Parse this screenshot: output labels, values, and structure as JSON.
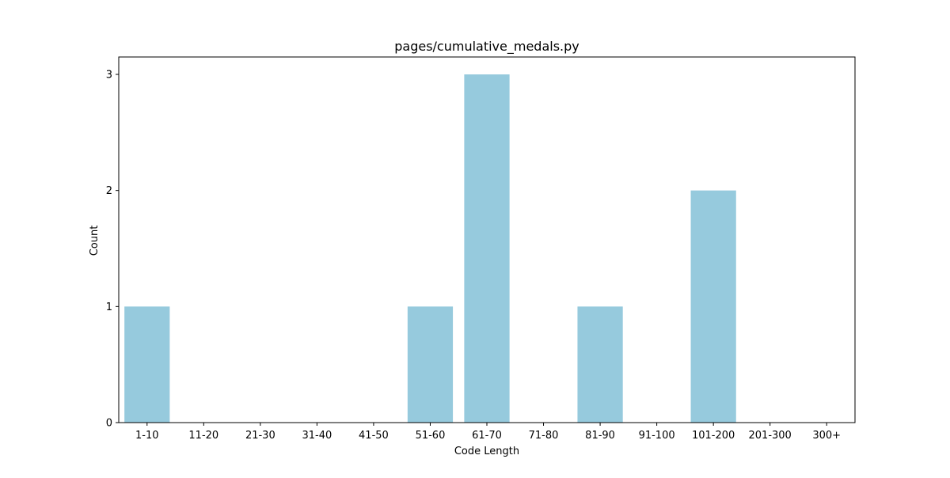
{
  "chart_data": {
    "type": "bar",
    "title": "pages/cumulative_medals.py",
    "xlabel": "Code Length",
    "ylabel": "Count",
    "categories": [
      "1-10",
      "11-20",
      "21-30",
      "31-40",
      "41-50",
      "51-60",
      "61-70",
      "71-80",
      "81-90",
      "91-100",
      "101-200",
      "201-300",
      "300+"
    ],
    "values": [
      1,
      0,
      0,
      0,
      0,
      1,
      3,
      0,
      1,
      0,
      2,
      0,
      0
    ],
    "ylim": [
      0,
      3.15
    ],
    "yticks": [
      "0",
      "1",
      "2",
      "3"
    ],
    "grid": false,
    "legend": "none",
    "bar_color": "#96cadd"
  }
}
